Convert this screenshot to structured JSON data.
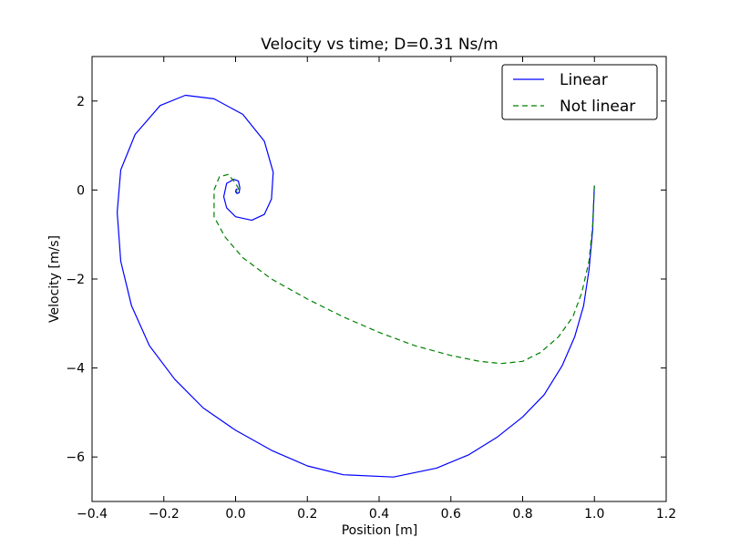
{
  "chart_data": {
    "type": "line",
    "title": "Velocity vs time; D=0.31 Ns/m",
    "xlabel": "Position [m]",
    "ylabel": "Velocity [m/s]",
    "xlim": [
      -0.4,
      1.2
    ],
    "ylim": [
      -7,
      3
    ],
    "xticks": [
      -0.4,
      -0.2,
      0.0,
      0.2,
      0.4,
      0.6,
      0.8,
      1.0,
      1.2
    ],
    "xtick_labels": [
      "−0.4",
      "−0.2",
      "0.0",
      "0.2",
      "0.4",
      "0.6",
      "0.8",
      "1.0",
      "1.2"
    ],
    "yticks": [
      -6,
      -4,
      -2,
      0,
      2
    ],
    "ytick_labels": [
      "−6",
      "−4",
      "−2",
      "0",
      "2"
    ],
    "grid": false,
    "legend_position": "top-right",
    "series": [
      {
        "name": "Linear",
        "color": "#0000ff",
        "style": "solid",
        "points": [
          [
            1.0,
            0.1
          ],
          [
            0.995,
            -0.9
          ],
          [
            0.985,
            -1.8
          ],
          [
            0.97,
            -2.6
          ],
          [
            0.945,
            -3.3
          ],
          [
            0.91,
            -3.95
          ],
          [
            0.86,
            -4.6
          ],
          [
            0.8,
            -5.1
          ],
          [
            0.73,
            -5.55
          ],
          [
            0.65,
            -5.95
          ],
          [
            0.56,
            -6.25
          ],
          [
            0.44,
            -6.45
          ],
          [
            0.3,
            -6.4
          ],
          [
            0.2,
            -6.2
          ],
          [
            0.1,
            -5.85
          ],
          [
            0.0,
            -5.4
          ],
          [
            -0.09,
            -4.9
          ],
          [
            -0.17,
            -4.25
          ],
          [
            -0.24,
            -3.5
          ],
          [
            -0.29,
            -2.6
          ],
          [
            -0.32,
            -1.6
          ],
          [
            -0.33,
            -0.5
          ],
          [
            -0.32,
            0.45
          ],
          [
            -0.28,
            1.25
          ],
          [
            -0.21,
            1.9
          ],
          [
            -0.14,
            2.13
          ],
          [
            -0.06,
            2.05
          ],
          [
            0.02,
            1.7
          ],
          [
            0.08,
            1.1
          ],
          [
            0.105,
            0.4
          ],
          [
            0.1,
            -0.2
          ],
          [
            0.08,
            -0.55
          ],
          [
            0.045,
            -0.68
          ],
          [
            0.0,
            -0.6
          ],
          [
            -0.025,
            -0.4
          ],
          [
            -0.033,
            -0.15
          ],
          [
            -0.025,
            0.15
          ],
          [
            -0.005,
            0.24
          ],
          [
            0.008,
            0.2
          ],
          [
            0.012,
            0.05
          ],
          [
            0.01,
            -0.06
          ],
          [
            0.004,
            -0.08
          ],
          [
            0.0,
            -0.04
          ],
          [
            0.002,
            0.02
          ],
          [
            0.005,
            0.0
          ]
        ]
      },
      {
        "name": "Not linear",
        "color": "#008000",
        "style": "dashed",
        "points": [
          [
            1.0,
            0.1
          ],
          [
            0.995,
            -0.8
          ],
          [
            0.985,
            -1.6
          ],
          [
            0.965,
            -2.3
          ],
          [
            0.94,
            -2.85
          ],
          [
            0.9,
            -3.3
          ],
          [
            0.85,
            -3.65
          ],
          [
            0.8,
            -3.85
          ],
          [
            0.74,
            -3.9
          ],
          [
            0.68,
            -3.85
          ],
          [
            0.6,
            -3.72
          ],
          [
            0.5,
            -3.5
          ],
          [
            0.4,
            -3.2
          ],
          [
            0.3,
            -2.85
          ],
          [
            0.2,
            -2.45
          ],
          [
            0.1,
            -2.0
          ],
          [
            0.02,
            -1.52
          ],
          [
            -0.03,
            -1.05
          ],
          [
            -0.06,
            -0.6
          ],
          [
            -0.06,
            0.0
          ],
          [
            -0.045,
            0.3
          ],
          [
            -0.02,
            0.35
          ],
          [
            -0.005,
            0.2
          ],
          [
            0.005,
            0.08
          ],
          [
            0.01,
            -0.02
          ],
          [
            0.005,
            -0.05
          ],
          [
            0.002,
            -0.03
          ]
        ]
      }
    ]
  }
}
